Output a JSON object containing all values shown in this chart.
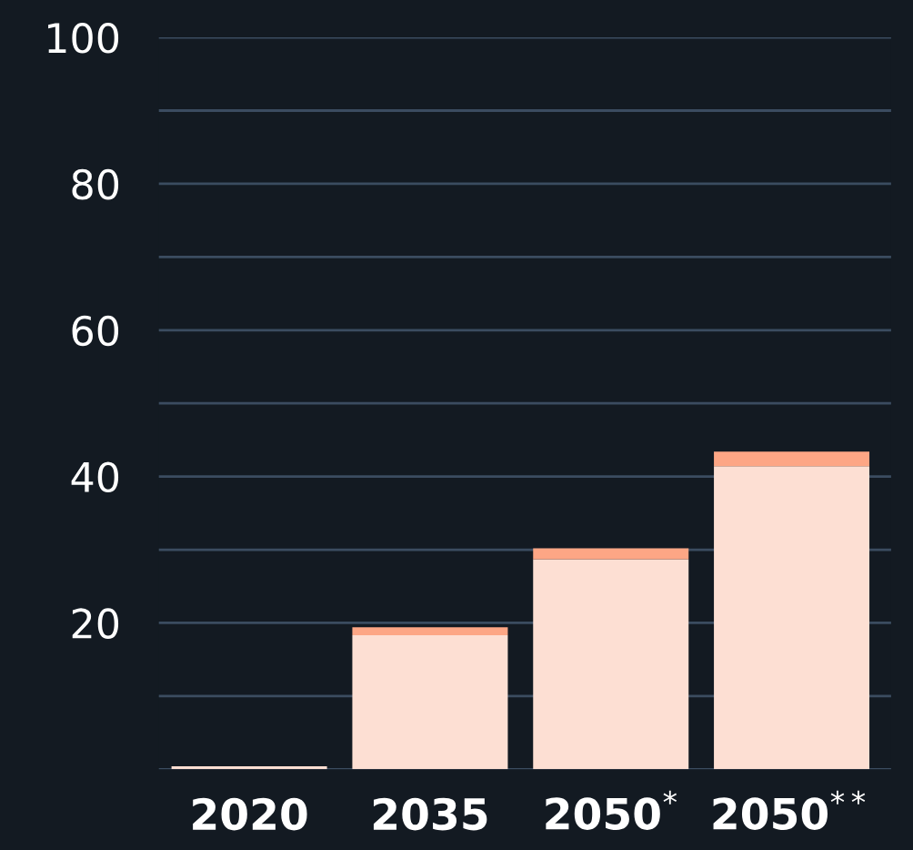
{
  "chart_data": {
    "type": "bar",
    "stacked": true,
    "categories": [
      "2020",
      "2035",
      "2050$^{*}$",
      "2050$^{**}$"
    ],
    "series": [
      {
        "color": "#fddfd3",
        "values": [
          0.4,
          18.3,
          28.7,
          41.4
        ]
      },
      {
        "color": "#fda685",
        "values": [
          0,
          1.1,
          1.5,
          2.0
        ]
      }
    ],
    "ylim": [
      0,
      100
    ],
    "yticks": [
      {
        "value": 0,
        "label": null
      },
      {
        "value": 10,
        "label": null
      },
      20,
      {
        "value": 30,
        "label": null
      },
      40,
      {
        "value": 50,
        "label": null
      },
      60,
      {
        "value": 70,
        "label": null
      },
      80,
      {
        "value": 90,
        "label": null
      },
      100
    ],
    "grid": "y"
  }
}
